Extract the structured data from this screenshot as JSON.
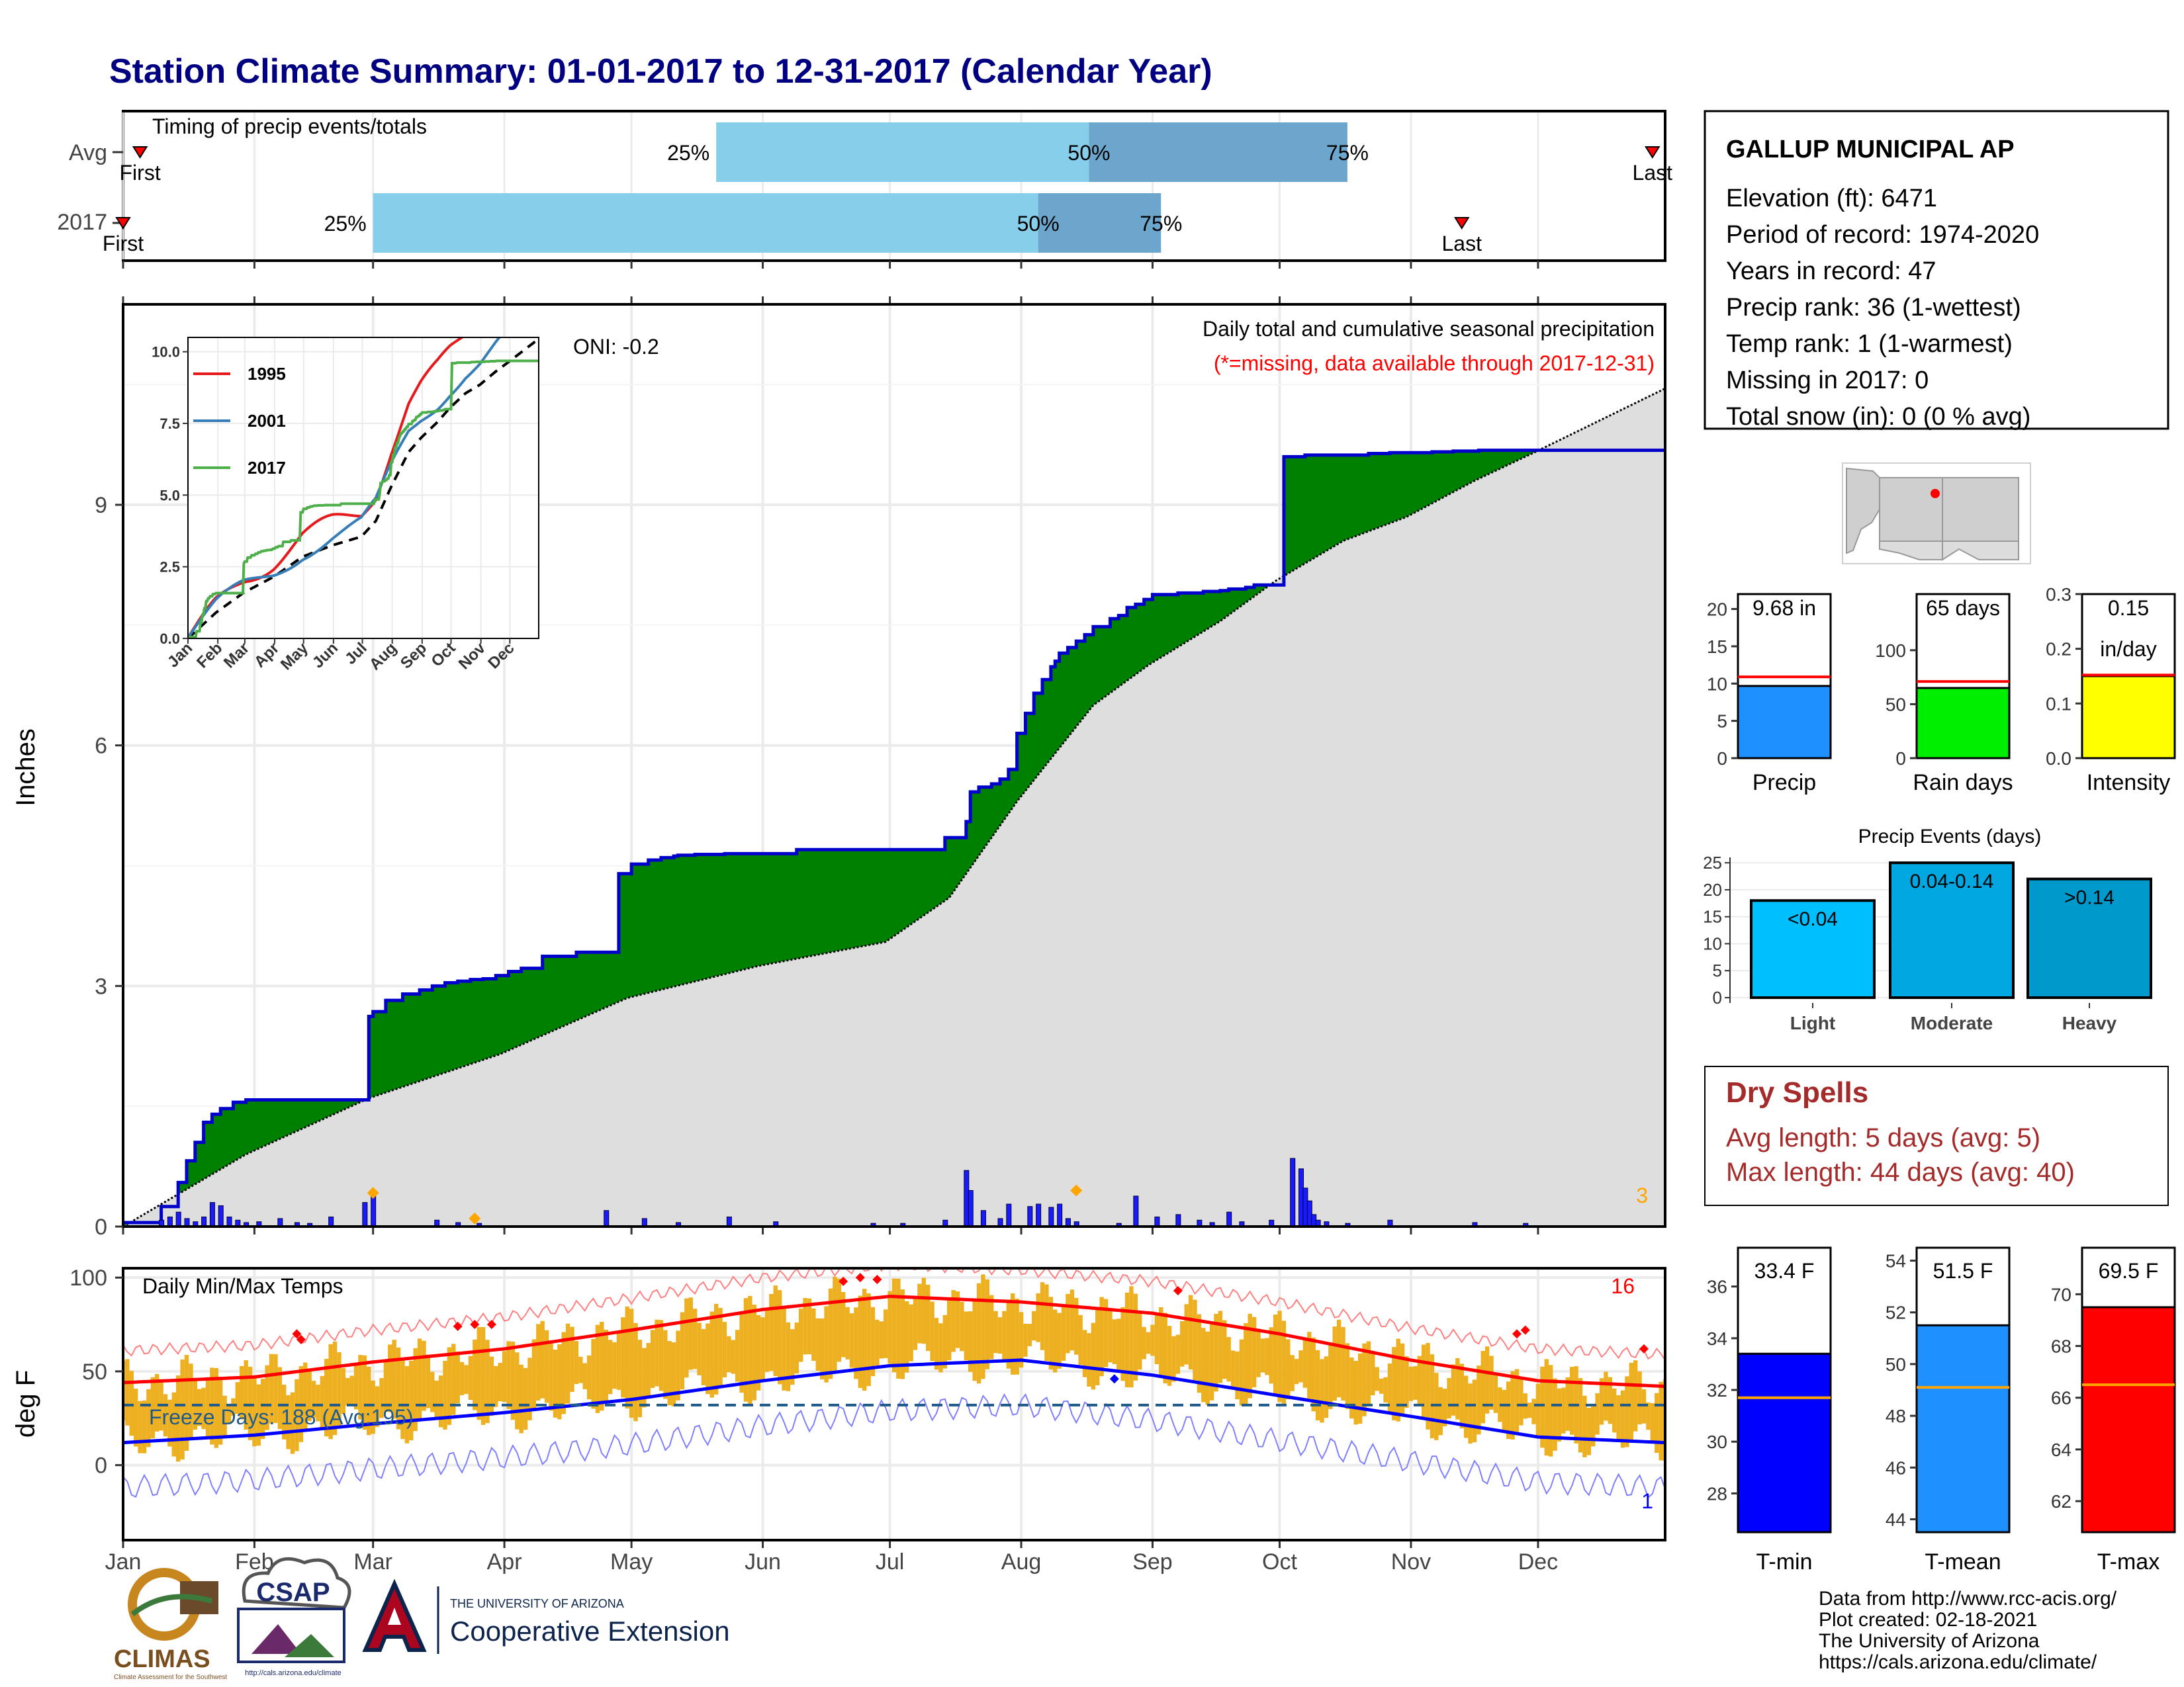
{
  "title": "Station Climate Summary: 01-01-2017 to 12-31-2017 (Calendar Year)",
  "colors": {
    "title": "#000080",
    "precip_line": "#0000cc",
    "surplus_fill": "#008000",
    "normal_fill": "#dedede",
    "future_fill": "#7f5200",
    "daily_bar": "#1a1aff",
    "tmax_line": "#ff0000",
    "tmin_line": "#0000ff",
    "range_bar": "#ecb020",
    "light_blue": "#87ceeb",
    "steel_blue": "#6ca6cd",
    "dry_spells": "#a52a2a"
  },
  "months": [
    "Jan",
    "Feb",
    "Mar",
    "Apr",
    "May",
    "Jun",
    "Jul",
    "Aug",
    "Sep",
    "Oct",
    "Nov",
    "Dec"
  ],
  "timing": {
    "title": "Timing of precip events/totals",
    "rows": [
      {
        "label": "Avg",
        "first_doy": 5,
        "last_doy": 362,
        "p25": 141,
        "p50": 229,
        "p75": 290,
        "first_text": "First",
        "last_text": "Last",
        "p25_text": "25%",
        "p50_text": "50%",
        "p75_text": "75%"
      },
      {
        "label": "2017",
        "first_doy": 1,
        "last_doy": 317,
        "p25": 60,
        "p50": 217,
        "p75": 246,
        "first_text": "First",
        "last_text": "Last",
        "p25_text": "25%",
        "p50_text": "50%",
        "p75_text": "75%"
      }
    ]
  },
  "main": {
    "ylabel": "Inches",
    "title": "Daily total and cumulative seasonal precipitation",
    "subtitle": "(*=missing, data available through 2017-12-31)",
    "oni": "ONI: -0.2",
    "count_text": "3",
    "y_ticks": [
      "0",
      "3",
      "6",
      "9"
    ]
  },
  "inset": {
    "y_ticks": [
      "0.0",
      "2.5",
      "5.0",
      "7.5",
      "10.0"
    ],
    "legend": [
      "1995",
      "2001",
      "2017"
    ]
  },
  "temps": {
    "label": "Daily Min/Max Temps",
    "ylabel": "deg F",
    "freeze_text": "Freeze Days: 188 (Avg:195)",
    "record_high_count": "16",
    "record_low_count": "1",
    "y_ticks": [
      "0",
      "50",
      "100"
    ]
  },
  "station": {
    "name": "GALLUP MUNICIPAL AP",
    "lines": [
      "Elevation (ft): 6471",
      "Period of record: 1974-2020",
      "Years in record: 47",
      "Precip rank: 36 (1-wettest)",
      "Temp rank: 1 (1-warmest)",
      "Missing in 2017: 0",
      "Total snow (in): 0 (0 % avg)"
    ]
  },
  "summary_bars": [
    {
      "name": "Precip",
      "value": 9.68,
      "avg": 10.9,
      "label1": "9.68 in",
      "label2": "",
      "fill": "#1e90ff",
      "ymax": 22,
      "ticks": [
        0,
        5,
        10,
        15,
        20
      ],
      "tick_labels": [
        "0",
        "5",
        "10",
        "15",
        "20"
      ]
    },
    {
      "name": "Rain days",
      "value": 65,
      "avg": 71,
      "label1": "65 days",
      "label2": "",
      "fill": "#00ee00",
      "ymax": 152,
      "ticks": [
        0,
        50,
        100
      ],
      "tick_labels": [
        "0",
        "50",
        "100"
      ]
    },
    {
      "name": "Intensity",
      "value": 0.15,
      "avg": 0.152,
      "label1": "0.15",
      "label2": "in/day",
      "fill": "#ffff00",
      "ymax": 0.3,
      "ticks": [
        0,
        0.1,
        0.2,
        0.3
      ],
      "tick_labels": [
        "0.0",
        "0.1",
        "0.2",
        "0.3"
      ]
    }
  ],
  "events": {
    "title": "Precip Events (days)",
    "y_ticks": [
      "0",
      "5",
      "10",
      "15",
      "20",
      "25"
    ],
    "bars": [
      {
        "name": "Light",
        "value": 18,
        "label": "<0.04",
        "fill": "#00bfff"
      },
      {
        "name": "Moderate",
        "value": 25,
        "label": "0.04-0.14",
        "fill": "#00a7e0"
      },
      {
        "name": "Heavy",
        "value": 22,
        "label": ">0.14",
        "fill": "#0099cc"
      }
    ]
  },
  "dry_spells": {
    "title": "Dry Spells",
    "avg": "Avg length: 5 days (avg: 5)",
    "max": "Max length: 44 days (avg: 40)"
  },
  "temp_bars": [
    {
      "name": "T-min",
      "value": 33.4,
      "avg": 31.7,
      "label": "33.4 F",
      "fill": "#0000ff",
      "ymin": 26.5,
      "ymax": 37.5,
      "ticks": [
        28,
        30,
        32,
        34,
        36
      ]
    },
    {
      "name": "T-mean",
      "value": 51.5,
      "avg": 49.1,
      "label": "51.5 F",
      "fill": "#1e90ff",
      "ymin": 43.5,
      "ymax": 54.5,
      "ticks": [
        44,
        46,
        48,
        50,
        52,
        54
      ]
    },
    {
      "name": "T-max",
      "value": 69.5,
      "avg": 66.5,
      "label": "69.5 F",
      "fill": "#ff0000",
      "ymin": 60.8,
      "ymax": 71.8,
      "ticks": [
        62,
        64,
        66,
        68,
        70
      ]
    }
  ],
  "credits": [
    "Data from http://www.rcc-acis.org/",
    "Plot created: 02-18-2021",
    "The University of Arizona",
    "https://cals.arizona.edu/climate/"
  ],
  "logos": {
    "climas": "CLIMAS",
    "climas_sub": "Climate Assessment for the Southwest",
    "csap": "CSAP",
    "csap_url": "http://cals.arizona.edu/climate",
    "ua_small": "THE UNIVERSITY OF ARIZONA",
    "ua_big": "Cooperative Extension"
  },
  "chart_data": {
    "type": "line",
    "title": "Daily total and cumulative seasonal precipitation",
    "ylabel": "Inches",
    "ylim": [
      0,
      11.5
    ],
    "x_unit": "day of year 2017",
    "series": [
      {
        "name": "2017 cumulative precip",
        "x": [
          1,
          10,
          14,
          16,
          18,
          20,
          22,
          24,
          27,
          30,
          59,
          60,
          63,
          67,
          71,
          74,
          77,
          80,
          83,
          86,
          89,
          92,
          95,
          100,
          108,
          118,
          121,
          125,
          128,
          131,
          132,
          134,
          136,
          137,
          140,
          141,
          142,
          143,
          160,
          195,
          200,
          201,
          203,
          206,
          208,
          210,
          212,
          214,
          216,
          218,
          220,
          221,
          222,
          224,
          226,
          228,
          230,
          234,
          236,
          238,
          240,
          242,
          244,
          250,
          256,
          260,
          262,
          266,
          268,
          275,
          280,
          295,
          300,
          310,
          315,
          318,
          321,
          327,
          333,
          365
        ],
        "y": [
          0.05,
          0.25,
          0.55,
          0.82,
          1.05,
          1.3,
          1.4,
          1.47,
          1.55,
          1.58,
          2.62,
          2.68,
          2.82,
          2.9,
          2.95,
          3.0,
          3.04,
          3.06,
          3.08,
          3.09,
          3.13,
          3.18,
          3.22,
          3.37,
          3.42,
          4.4,
          4.52,
          4.57,
          4.6,
          4.62,
          4.63,
          4.63,
          4.64,
          4.64,
          4.64,
          4.64,
          4.64,
          4.65,
          4.7,
          4.85,
          5.05,
          5.42,
          5.48,
          5.52,
          5.58,
          5.7,
          6.15,
          6.4,
          6.65,
          6.82,
          6.98,
          7.05,
          7.15,
          7.22,
          7.3,
          7.38,
          7.48,
          7.58,
          7.62,
          7.72,
          7.76,
          7.82,
          7.88,
          7.9,
          7.92,
          7.93,
          7.95,
          7.97,
          8.0,
          9.6,
          9.62,
          9.64,
          9.65,
          9.66,
          9.67,
          9.67,
          9.68,
          9.68,
          9.68,
          9.68
        ]
      },
      {
        "name": "Average cumulative precip",
        "x": [
          1,
          30,
          59,
          90,
          120,
          151,
          181,
          196,
          212,
          230,
          243,
          260,
          273,
          289,
          304,
          320,
          334,
          365
        ],
        "y": [
          0,
          0.9,
          1.6,
          2.15,
          2.85,
          3.25,
          3.55,
          4.1,
          5.3,
          6.5,
          7.0,
          7.55,
          8.05,
          8.55,
          8.85,
          9.3,
          9.65,
          10.45
        ]
      }
    ],
    "daily_precip": {
      "x": [
        10,
        12,
        14,
        16,
        18,
        20,
        22,
        24,
        26,
        28,
        30,
        33,
        38,
        42,
        45,
        50,
        58,
        60,
        75,
        80,
        85,
        115,
        124,
        132,
        144,
        155,
        178,
        185,
        195,
        200,
        201,
        204,
        208,
        210,
        215,
        217,
        220,
        222,
        224,
        226,
        236,
        240,
        245,
        250,
        255,
        258,
        262,
        265,
        272,
        277,
        279,
        280,
        281,
        282,
        283,
        285,
        290,
        300,
        320,
        332
      ],
      "y": [
        0.08,
        0.12,
        0.18,
        0.1,
        0.06,
        0.12,
        0.3,
        0.26,
        0.12,
        0.08,
        0.05,
        0.06,
        0.1,
        0.05,
        0.04,
        0.12,
        0.3,
        0.4,
        0.08,
        0.05,
        0.04,
        0.2,
        0.1,
        0.05,
        0.12,
        0.06,
        0.04,
        0.04,
        0.08,
        0.7,
        0.45,
        0.2,
        0.1,
        0.28,
        0.25,
        0.28,
        0.24,
        0.28,
        0.1,
        0.06,
        0.04,
        0.38,
        0.12,
        0.15,
        0.08,
        0.05,
        0.18,
        0.06,
        0.08,
        0.85,
        0.72,
        0.48,
        0.32,
        0.15,
        0.08,
        0.06,
        0.04,
        0.08,
        0.05,
        0.04
      ]
    },
    "temps": {
      "tmax_smoothed": {
        "x": [
          1,
          32,
          60,
          91,
          121,
          152,
          182,
          213,
          244,
          274,
          305,
          335,
          365
        ],
        "y": [
          44,
          47,
          55,
          62,
          72,
          83,
          90,
          87,
          81,
          70,
          56,
          45,
          42
        ]
      },
      "tmin_smoothed": {
        "x": [
          1,
          32,
          60,
          91,
          121,
          152,
          182,
          213,
          244,
          274,
          305,
          335,
          365
        ],
        "y": [
          12,
          16,
          22,
          28,
          35,
          45,
          53,
          56,
          48,
          37,
          26,
          15,
          12
        ]
      }
    }
  }
}
